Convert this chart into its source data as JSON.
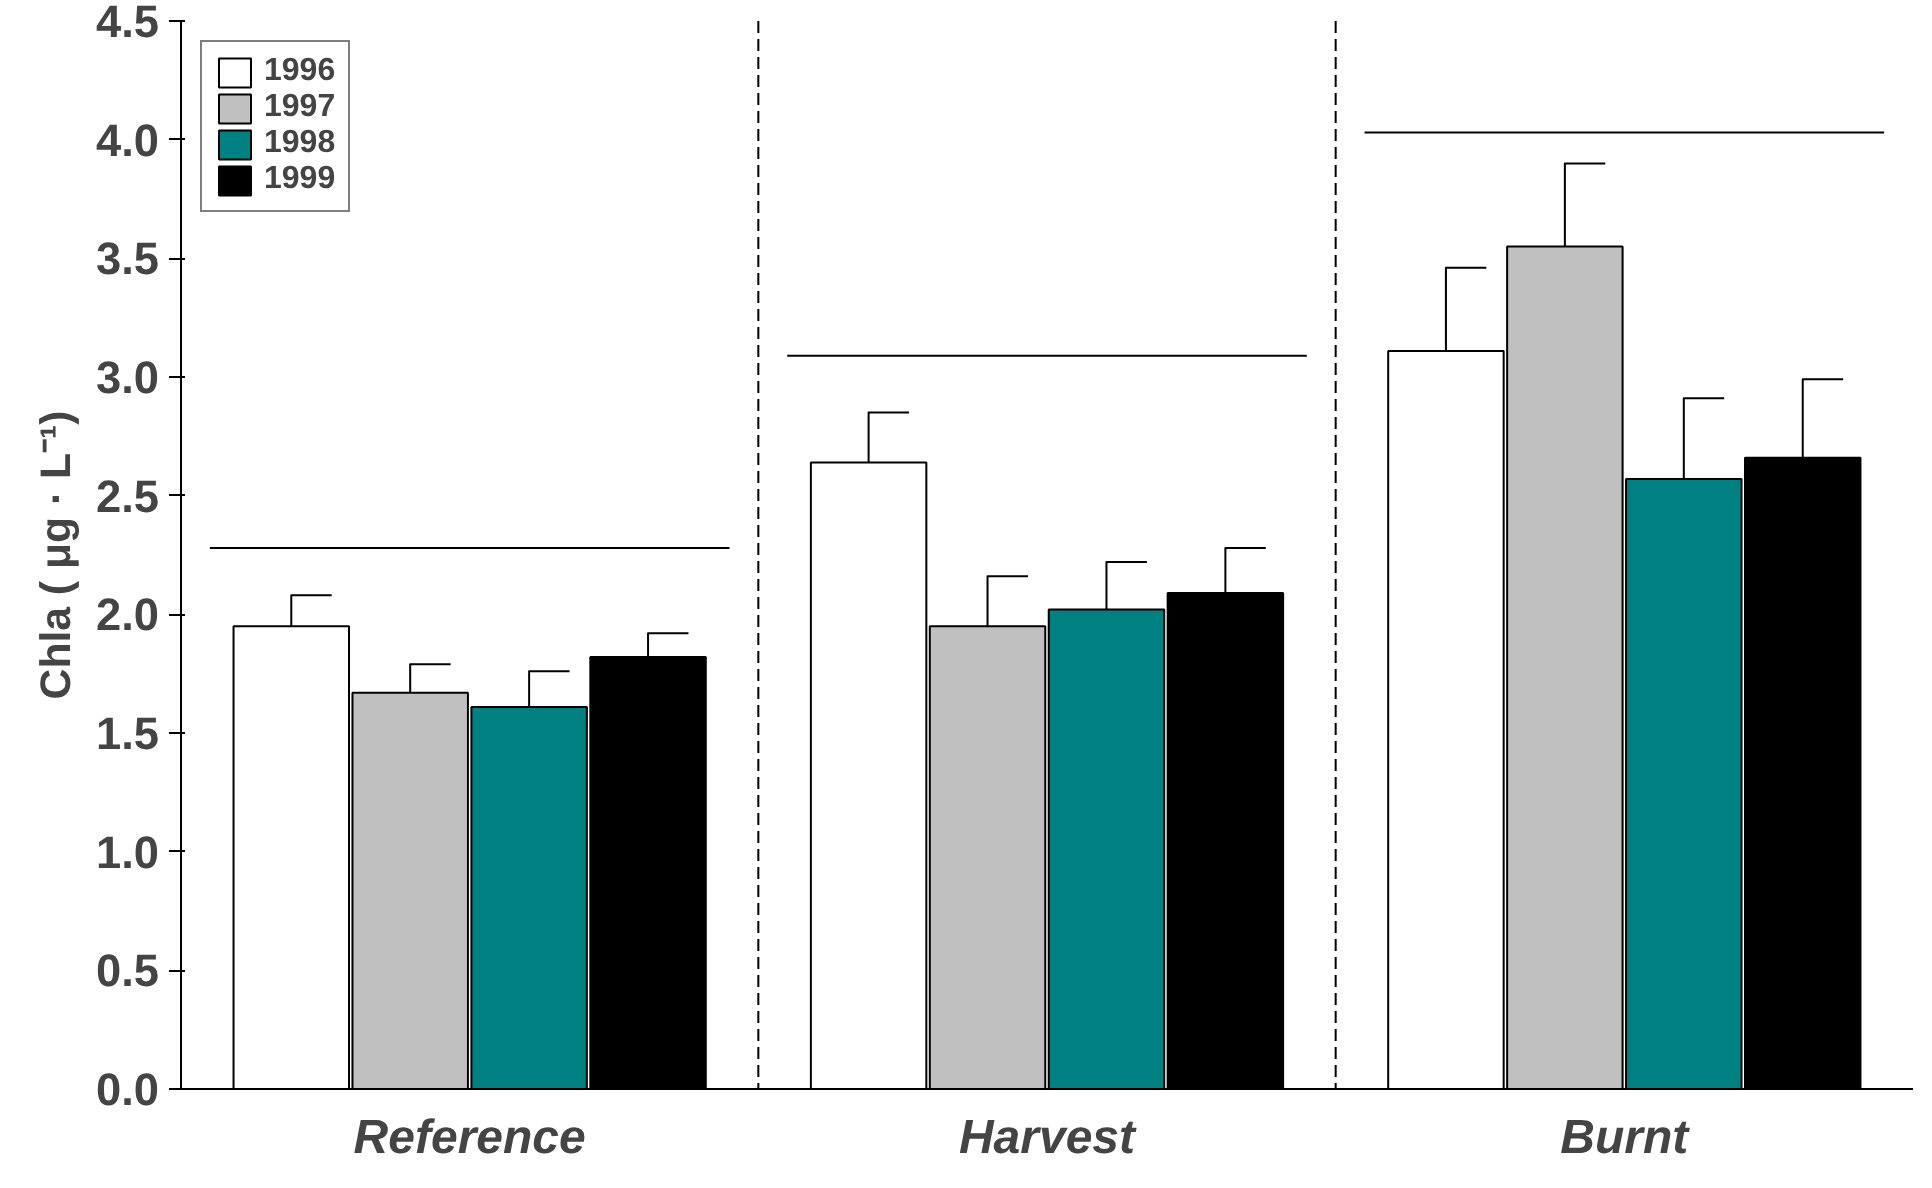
{
  "chart_data": {
    "type": "bar",
    "ylabel": "Chla ( μg · L⁻¹)",
    "categories": [
      "Reference",
      "Harvest",
      "Burnt"
    ],
    "series": [
      {
        "name": "1996",
        "color": "#ffffff",
        "values": [
          1.95,
          2.64,
          3.11
        ],
        "errors": [
          [
            1.95,
            2.08
          ],
          [
            2.64,
            2.85
          ],
          [
            3.11,
            3.46
          ]
        ]
      },
      {
        "name": "1997",
        "color": "#c0c0c0",
        "values": [
          1.67,
          1.95,
          3.55
        ],
        "errors": [
          [
            1.67,
            1.79
          ],
          [
            1.95,
            2.16
          ],
          [
            3.55,
            3.9
          ]
        ]
      },
      {
        "name": "1998",
        "color": "#008080",
        "values": [
          1.61,
          2.02,
          2.57
        ],
        "errors": [
          [
            1.61,
            1.76
          ],
          [
            2.02,
            2.22
          ],
          [
            2.57,
            2.91
          ]
        ]
      },
      {
        "name": "1999",
        "color": "#000000",
        "values": [
          1.82,
          2.09,
          2.66
        ],
        "errors": [
          [
            1.82,
            1.92
          ],
          [
            2.09,
            2.28
          ],
          [
            2.66,
            2.99
          ]
        ]
      }
    ],
    "ylim": [
      0,
      4.5
    ],
    "yticks": [
      {
        "value": 0,
        "label": "0.0"
      },
      {
        "value": 0.5,
        "label": "0.5"
      },
      {
        "value": 1,
        "label": "1.0"
      },
      {
        "value": 1.5,
        "label": "1.5"
      },
      {
        "value": 2,
        "label": "2.0"
      },
      {
        "value": 2.5,
        "label": "2.5"
      },
      {
        "value": 3,
        "label": "3.0"
      },
      {
        "value": 3.5,
        "label": "3.5"
      },
      {
        "value": 4,
        "label": "4.0"
      },
      {
        "value": 4.5,
        "label": "4.5"
      }
    ],
    "ref_lines": [
      {
        "axis": "y",
        "value": 2.28,
        "color": "#000000"
      },
      {
        "axis": "y",
        "value": 3.09,
        "color": "#000000"
      },
      {
        "axis": "y",
        "value": 4.03,
        "color": "#000000"
      }
    ],
    "grid": "x",
    "legend": "top left"
  }
}
